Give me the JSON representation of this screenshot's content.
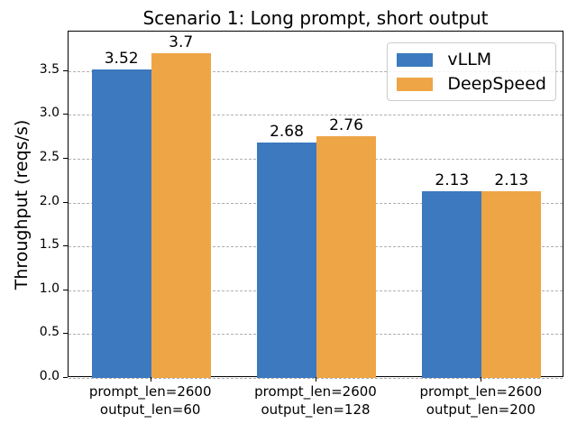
{
  "chart_data": {
    "type": "bar",
    "title": "Scenario 1: Long prompt, short output",
    "xlabel": "",
    "ylabel": "Throughput (reqs/s)",
    "categories": [
      "prompt_len=2600\noutput_len=60",
      "prompt_len=2600\noutput_len=128",
      "prompt_len=2600\noutput_len=200"
    ],
    "series": [
      {
        "name": "vLLM",
        "color": "#3c79bf",
        "values": [
          3.52,
          2.68,
          2.13
        ],
        "labels": [
          "3.52",
          "2.68",
          "2.13"
        ]
      },
      {
        "name": "DeepSpeed",
        "color": "#eea546",
        "values": [
          3.7,
          2.76,
          2.13
        ],
        "labels": [
          "3.7",
          "2.76",
          "2.13"
        ]
      }
    ],
    "ylim": [
      0,
      3.95
    ],
    "yticks": [
      0.0,
      0.5,
      1.0,
      1.5,
      2.0,
      2.5,
      3.0,
      3.5
    ],
    "grid": true,
    "grid_style": "dashed",
    "legend_position": "upper right",
    "grid_color": "#b0b0b0"
  }
}
